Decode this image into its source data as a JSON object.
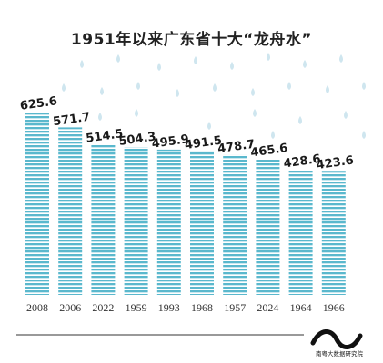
{
  "title": "1951年以来广东省十大“龙舟水”",
  "source": "南粤大数据研究院",
  "colors": {
    "bar_stripe": "#5ab8cd",
    "bar_gap": "#ffffff",
    "raindrop": "#cfe6ef",
    "label": "#1a1a1a",
    "axis": "#333333"
  },
  "chart_data": {
    "type": "bar",
    "title": "1951年以来广东省十大“龙舟水”",
    "categories": [
      "2008",
      "2006",
      "2022",
      "1959",
      "1993",
      "1968",
      "1957",
      "2024",
      "1964",
      "1966"
    ],
    "values": [
      625.6,
      571.7,
      514.5,
      504.3,
      495.9,
      491.5,
      478.7,
      465.6,
      428.6,
      423.6
    ],
    "value_labels": [
      "625.6",
      "571.7",
      "514.5",
      "504.3",
      "495.9",
      "491.5",
      "478.7",
      "465.6",
      "428.6",
      "423.6"
    ],
    "xlabel": "",
    "ylabel": "",
    "ylim": [
      0,
      650
    ],
    "grid": false,
    "legend": "none"
  }
}
